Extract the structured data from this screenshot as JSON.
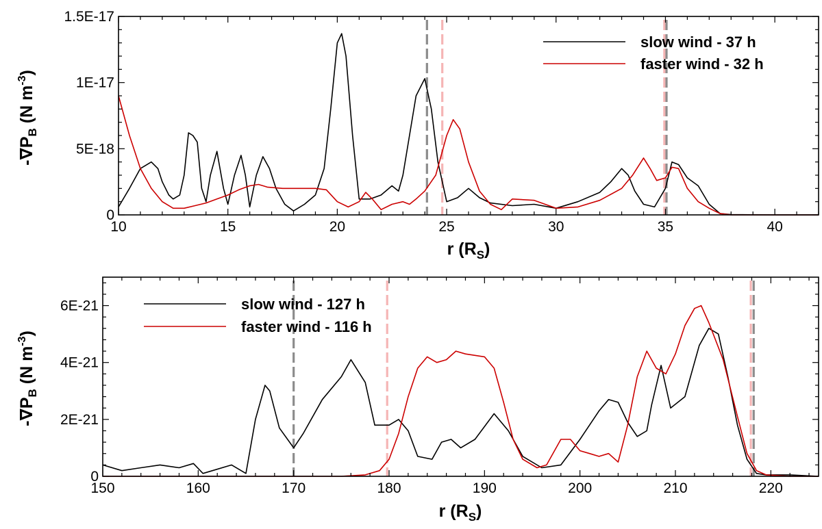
{
  "chart_data": [
    {
      "type": "line",
      "panel": "top",
      "title": "",
      "xlabel": "r (R_S)",
      "xlabel_main": "r (R",
      "xlabel_sub": "S",
      "xlabel_close": ")",
      "ylabel": "-∇P_B (N m^-3)",
      "ylabel_main": "-∇P",
      "ylabel_sub": "B",
      "ylabel_unit": " (N m",
      "ylabel_sup": "-3",
      "ylabel_close": ")",
      "xlim": [
        10,
        42
      ],
      "ylim": [
        0,
        1.5e-17
      ],
      "xticks": [
        10,
        15,
        20,
        25,
        30,
        35,
        40
      ],
      "xtick_labels": [
        "10",
        "15",
        "20",
        "25",
        "30",
        "35",
        "40"
      ],
      "yticks": [
        0,
        5e-18,
        1e-17,
        1.5e-17
      ],
      "ytick_labels": [
        "0",
        "5E-18",
        "1E-17",
        "1.5E-17"
      ],
      "grid": false,
      "legend_position": "top-right",
      "vlines": [
        {
          "x": 24.1,
          "color": "#8c8c8c"
        },
        {
          "x": 24.8,
          "color": "#f5b5b5"
        },
        {
          "x": 34.95,
          "color": "#f5b5b5"
        },
        {
          "x": 35.05,
          "color": "#8c8c8c"
        }
      ],
      "series": [
        {
          "name": "slow wind - 37 h",
          "color": "#000000",
          "x": [
            10,
            10.5,
            11,
            11.5,
            11.8,
            12,
            12.3,
            12.5,
            12.8,
            13,
            13.2,
            13.4,
            13.6,
            13.8,
            14,
            14.2,
            14.5,
            14.8,
            15,
            15.3,
            15.6,
            15.8,
            16,
            16.3,
            16.6,
            16.9,
            17.2,
            17.6,
            18,
            18.5,
            19,
            19.4,
            19.7,
            20,
            20.2,
            20.4,
            20.7,
            21,
            21.5,
            22,
            22.5,
            22.8,
            23,
            23.3,
            23.6,
            24,
            24.3,
            24.6,
            25,
            25.5,
            26,
            26.5,
            27,
            28,
            29,
            30,
            31,
            32,
            32.5,
            33,
            33.3,
            33.6,
            34,
            34.5,
            35,
            35.3,
            35.6,
            36,
            36.5,
            37,
            37.5,
            38,
            40,
            42
          ],
          "values": [
            6e-19,
            2e-18,
            3.5e-18,
            4e-18,
            3.5e-18,
            2.5e-18,
            1.5e-18,
            1.2e-18,
            1.5e-18,
            3e-18,
            6.2e-18,
            6e-18,
            5.5e-18,
            2e-18,
            1e-18,
            3e-18,
            4.8e-18,
            2e-18,
            8e-19,
            3e-18,
            4.5e-18,
            3e-18,
            6e-19,
            3e-18,
            4.4e-18,
            3.5e-18,
            2e-18,
            8e-19,
            3e-19,
            8e-19,
            1.5e-18,
            3.5e-18,
            8e-18,
            1.3e-17,
            1.37e-17,
            1.2e-17,
            6e-18,
            1.2e-18,
            1.2e-18,
            1.5e-18,
            2.2e-18,
            1.8e-18,
            3e-18,
            6e-18,
            9e-18,
            1.03e-17,
            8e-18,
            4e-18,
            1e-18,
            1.3e-18,
            2e-18,
            1.3e-18,
            9e-19,
            7e-19,
            8e-19,
            5e-19,
            1e-18,
            1.7e-18,
            2.5e-18,
            3.5e-18,
            3e-18,
            1.8e-18,
            8e-19,
            6e-19,
            2e-18,
            4e-18,
            3.8e-18,
            2.8e-18,
            2.2e-18,
            8e-19,
            1e-19,
            2e-20,
            0,
            0
          ]
        },
        {
          "name": "faster wind - 32 h",
          "color": "#cc0000",
          "x": [
            10,
            10.5,
            11,
            11.5,
            12,
            12.5,
            13,
            13.5,
            14,
            14.5,
            15,
            15.5,
            16,
            16.4,
            16.8,
            17.5,
            18,
            18.5,
            19,
            19.5,
            20,
            20.5,
            21,
            21.3,
            21.6,
            22,
            22.5,
            23,
            23.3,
            23.6,
            24,
            24.5,
            25,
            25.3,
            25.6,
            26,
            26.5,
            27,
            27.5,
            28,
            29,
            30,
            31,
            32,
            33,
            33.5,
            34,
            34.3,
            34.6,
            35,
            35.3,
            35.6,
            36,
            36.5,
            37,
            37.5,
            38,
            40,
            42
          ],
          "values": [
            9e-18,
            6e-18,
            3.5e-18,
            2e-18,
            1e-18,
            5e-19,
            5e-19,
            7e-19,
            9e-19,
            1.2e-18,
            1.5e-18,
            1.9e-18,
            2.2e-18,
            2.3e-18,
            2.1e-18,
            2e-18,
            2e-18,
            2e-18,
            2e-18,
            1.9e-18,
            1e-18,
            6e-19,
            1e-18,
            1.7e-18,
            1.2e-18,
            4e-19,
            8e-19,
            1e-18,
            8e-19,
            1.2e-18,
            1.8e-18,
            3e-18,
            6e-18,
            7.2e-18,
            6.5e-18,
            4e-18,
            1.8e-18,
            8e-19,
            4e-19,
            1.2e-18,
            1.1e-18,
            5e-19,
            6e-19,
            1.1e-18,
            2e-18,
            3e-18,
            4.3e-18,
            3.5e-18,
            2.6e-18,
            2.8e-18,
            3.6e-18,
            3.5e-18,
            2e-18,
            1e-18,
            5e-19,
            1e-19,
            0,
            0,
            0
          ]
        }
      ]
    },
    {
      "type": "line",
      "panel": "bottom",
      "title": "",
      "xlabel": "r (R_S)",
      "xlabel_main": "r (R",
      "xlabel_sub": "S",
      "xlabel_close": ")",
      "ylabel": "-∇P_B (N m^-3)",
      "ylabel_main": "-∇P",
      "ylabel_sub": "B",
      "ylabel_unit": " (N m",
      "ylabel_sup": "-3",
      "ylabel_close": ")",
      "xlim": [
        150,
        225
      ],
      "ylim": [
        0,
        7e-21
      ],
      "xticks": [
        150,
        160,
        170,
        180,
        190,
        200,
        210,
        220
      ],
      "xtick_labels": [
        "150",
        "160",
        "170",
        "180",
        "190",
        "200",
        "210",
        "220"
      ],
      "yticks": [
        0,
        2e-21,
        4e-21,
        6e-21
      ],
      "ytick_labels": [
        "0",
        "2E-21",
        "4E-21",
        "6E-21"
      ],
      "grid": false,
      "legend_position": "top-left",
      "vlines": [
        {
          "x": 170,
          "color": "#8c8c8c"
        },
        {
          "x": 179.8,
          "color": "#f5b5b5"
        },
        {
          "x": 217.9,
          "color": "#f5b5b5"
        },
        {
          "x": 218.2,
          "color": "#8c8c8c"
        }
      ],
      "series": [
        {
          "name": "slow wind - 127 h",
          "color": "#000000",
          "x": [
            150,
            152,
            154,
            156,
            158,
            159.5,
            160.5,
            161.5,
            163.5,
            165,
            166,
            167,
            167.5,
            168.5,
            170,
            171,
            173,
            175,
            176,
            177.5,
            178.5,
            180,
            181,
            182,
            183,
            184.5,
            185.5,
            186.5,
            187.5,
            189,
            191,
            192.5,
            194,
            196,
            198,
            200,
            202,
            203,
            204,
            205,
            206,
            207,
            207.5,
            208.5,
            209.5,
            211,
            212.5,
            213.5,
            214.5,
            215.5,
            216.5,
            217.5,
            218.5,
            219.5,
            222,
            225
          ],
          "values": [
            4e-22,
            2e-22,
            3e-22,
            4e-22,
            3e-22,
            4.5e-22,
            1e-22,
            2e-22,
            4e-22,
            1e-22,
            2e-21,
            3.2e-21,
            3e-21,
            1.7e-21,
            1e-21,
            1.5e-21,
            2.7e-21,
            3.5e-21,
            4.1e-21,
            3.3e-21,
            1.8e-21,
            1.8e-21,
            2e-21,
            1.6e-21,
            7e-22,
            6e-22,
            1.2e-21,
            1.3e-21,
            1e-21,
            1.3e-21,
            2.2e-21,
            1.6e-21,
            7e-22,
            3e-22,
            4e-22,
            1.3e-21,
            2.3e-21,
            2.7e-21,
            2.6e-21,
            1.9e-21,
            1.4e-21,
            1.6e-21,
            2.5e-21,
            3.9e-21,
            2.4e-21,
            2.8e-21,
            4.6e-21,
            5.2e-21,
            5e-21,
            3.5e-21,
            1.8e-21,
            6e-22,
            1e-22,
            5e-23,
            5e-23,
            0
          ]
        },
        {
          "name": "faster wind - 116 h",
          "color": "#cc0000",
          "x": [
            150,
            160,
            170,
            175,
            177.5,
            179,
            180,
            181,
            182,
            183,
            184,
            185,
            186,
            187,
            188,
            189,
            190,
            191,
            192,
            193,
            194,
            195.5,
            196.5,
            198,
            199,
            200,
            201,
            202,
            203,
            204,
            205,
            206,
            207,
            208,
            209,
            210,
            211,
            212,
            212.7,
            213.5,
            215,
            216.5,
            217.5,
            218.5,
            219.5,
            222,
            225
          ],
          "values": [
            0,
            0,
            0,
            0,
            5e-23,
            2e-22,
            6e-22,
            1.5e-21,
            2.8e-21,
            3.8e-21,
            4.2e-21,
            4e-21,
            4.1e-21,
            4.4e-21,
            4.3e-21,
            4.25e-21,
            4.2e-21,
            3.8e-21,
            2.6e-21,
            1.3e-21,
            6e-22,
            3e-22,
            4e-22,
            1.3e-21,
            1.3e-21,
            9e-22,
            8e-22,
            7e-22,
            8e-22,
            5e-22,
            1.8e-21,
            3.5e-21,
            4.4e-21,
            3.8e-21,
            3.6e-21,
            4.3e-21,
            5.3e-21,
            5.9e-21,
            6e-21,
            5.4e-21,
            4.1e-21,
            2.1e-21,
            8e-22,
            2e-22,
            5e-23,
            0,
            0
          ]
        }
      ]
    }
  ]
}
